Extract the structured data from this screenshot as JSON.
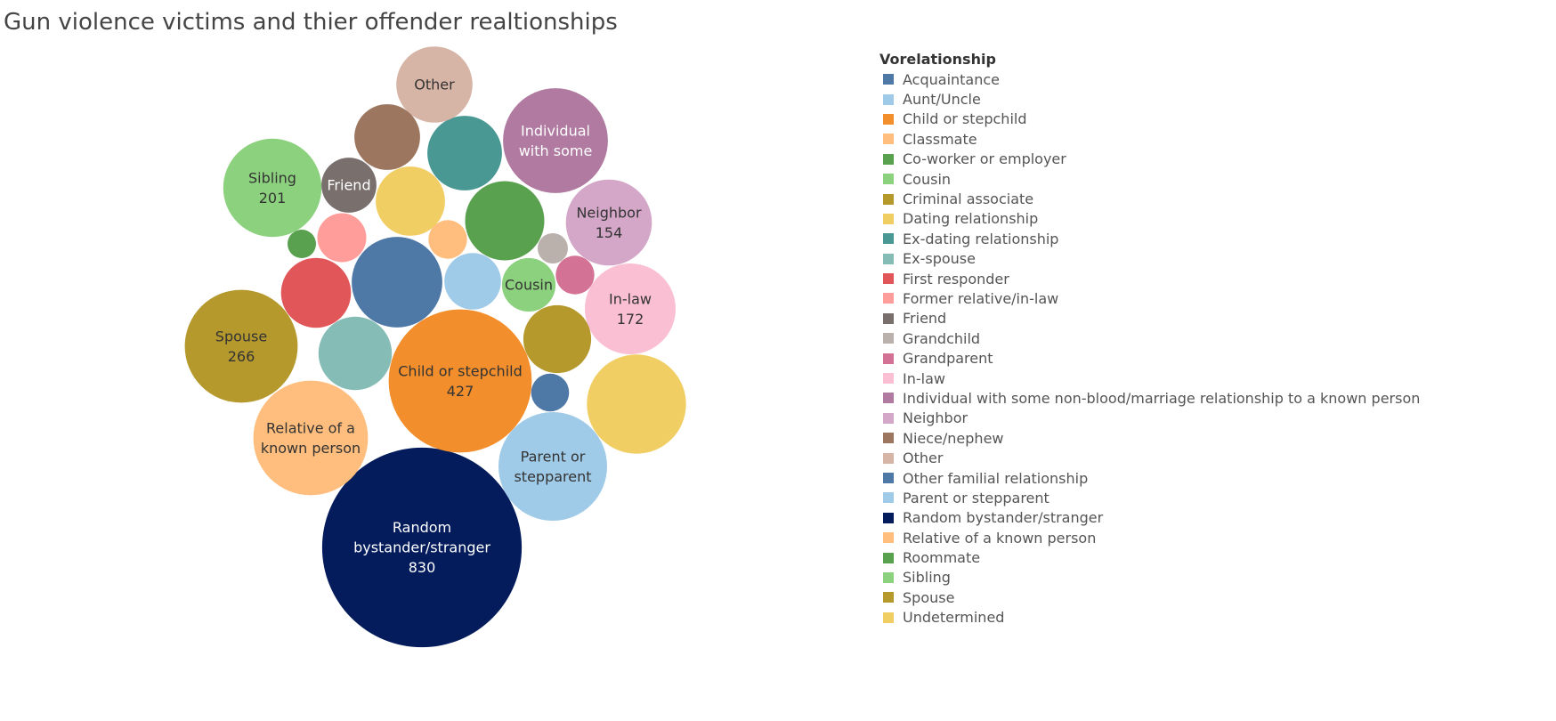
{
  "title": "Gun violence victims and thier offender realtionships",
  "chart_data": {
    "type": "bubble",
    "title": "Gun violence victims and thier offender realtionships",
    "legend_title": "Vorelationship",
    "legend_position": "right",
    "categories": [
      {
        "name": "Acquaintance",
        "color": "#4e79a7"
      },
      {
        "name": "Aunt/Uncle",
        "color": "#a0cbe8"
      },
      {
        "name": "Child or stepchild",
        "color": "#f28e2b"
      },
      {
        "name": "Classmate",
        "color": "#ffbe7d"
      },
      {
        "name": "Co-worker or employer",
        "color": "#59a14f"
      },
      {
        "name": "Cousin",
        "color": "#8cd17d"
      },
      {
        "name": "Criminal associate",
        "color": "#b6992d"
      },
      {
        "name": "Dating relationship",
        "color": "#f1ce63"
      },
      {
        "name": "Ex-dating relationship",
        "color": "#499894"
      },
      {
        "name": "Ex-spouse",
        "color": "#86bcb6"
      },
      {
        "name": "First responder",
        "color": "#e15759"
      },
      {
        "name": "Former relative/in-law",
        "color": "#ff9d9a"
      },
      {
        "name": "Friend",
        "color": "#79706e"
      },
      {
        "name": "Grandchild",
        "color": "#bab0ac"
      },
      {
        "name": "Grandparent",
        "color": "#d37295"
      },
      {
        "name": "In-law",
        "color": "#fabfd2"
      },
      {
        "name": "Individual with some non-blood/marriage relationship to a known person",
        "color": "#b07aa1"
      },
      {
        "name": "Neighbor",
        "color": "#d4a6c8"
      },
      {
        "name": "Niece/nephew",
        "color": "#9d7660"
      },
      {
        "name": "Other",
        "color": "#d7b5a6"
      },
      {
        "name": "Other familial relationship",
        "color": "#4e79a7"
      },
      {
        "name": "Parent or stepparent",
        "color": "#a0cbe8"
      },
      {
        "name": "Random bystander/stranger",
        "color": "#041c5c"
      },
      {
        "name": "Relative of a known person",
        "color": "#ffbe7d"
      },
      {
        "name": "Roommate",
        "color": "#59a14f"
      },
      {
        "name": "Sibling",
        "color": "#8cd17d"
      },
      {
        "name": "Spouse",
        "color": "#b6992d"
      },
      {
        "name": "Undetermined",
        "color": "#f1ce63"
      }
    ],
    "bubbles": [
      {
        "category": "Random bystander/stranger",
        "value": 830,
        "label": [
          "Random",
          "bystander/stranger",
          "830"
        ],
        "label_color": "#ffffff"
      },
      {
        "category": "Child or stepchild",
        "value": 427,
        "label": [
          "Child or stepchild",
          "427"
        ],
        "label_color": "#333333"
      },
      {
        "category": "Spouse",
        "value": 266,
        "label": [
          "Spouse",
          "266"
        ],
        "label_color": "#333333"
      },
      {
        "category": "Sibling",
        "value": 201,
        "label": [
          "Sibling",
          "201"
        ],
        "label_color": "#333333"
      },
      {
        "category": "In-law",
        "value": 172,
        "label": [
          "In-law",
          "172"
        ],
        "label_color": "#333333"
      },
      {
        "category": "Neighbor",
        "value": 154,
        "label": [
          "Neighbor",
          "154"
        ],
        "label_color": "#333333"
      },
      {
        "category": "Relative of a known person",
        "value": 274,
        "label": [
          "Relative of a",
          "known person"
        ],
        "label_color": "#333333"
      },
      {
        "category": "Parent or stepparent",
        "value": 246,
        "label": [
          "Parent or",
          "stepparent"
        ],
        "label_color": "#333333"
      },
      {
        "category": "Individual with some non-blood/marriage relationship to a known person",
        "value": 229,
        "label": [
          "Individual",
          "with some"
        ],
        "label_color": "#ffffff"
      },
      {
        "category": "Undetermined",
        "value": 205,
        "label": [],
        "label_color": "#333333"
      },
      {
        "category": "Acquaintance",
        "value": 171,
        "label": [],
        "label_color": "#ffffff"
      },
      {
        "category": "Criminal associate",
        "value": 96,
        "label": [],
        "label_color": "#333333"
      },
      {
        "category": "Co-worker or employer",
        "value": 131,
        "label": [],
        "label_color": "#333333"
      },
      {
        "category": "Ex-dating relationship",
        "value": 116,
        "label": [],
        "label_color": "#333333"
      },
      {
        "category": "Ex-spouse",
        "value": 112,
        "label": [],
        "label_color": "#333333"
      },
      {
        "category": "First responder",
        "value": 102,
        "label": [],
        "label_color": "#333333"
      },
      {
        "category": "Other",
        "value": 121,
        "label": [
          "Other"
        ],
        "label_color": "#333333"
      },
      {
        "category": "Dating relationship",
        "value": 100,
        "label": [],
        "label_color": "#333333"
      },
      {
        "category": "Niece/nephew",
        "value": 90,
        "label": [],
        "label_color": "#333333"
      },
      {
        "category": "Aunt/Uncle",
        "value": 67,
        "label": [],
        "label_color": "#333333"
      },
      {
        "category": "Cousin",
        "value": 60,
        "label": [
          "Cousin"
        ],
        "label_color": "#333333"
      },
      {
        "category": "Friend",
        "value": 63,
        "label": [
          "Friend"
        ],
        "label_color": "#ffffff"
      },
      {
        "category": "Former relative/in-law",
        "value": 50,
        "label": [],
        "label_color": "#333333"
      },
      {
        "category": "Classmate",
        "value": 31,
        "label": [],
        "label_color": "#333333"
      },
      {
        "category": "Other familial relationship",
        "value": 30,
        "label": [],
        "label_color": "#333333"
      },
      {
        "category": "Grandparent",
        "value": 31,
        "label": [],
        "label_color": "#333333"
      },
      {
        "category": "Grandchild",
        "value": 19,
        "label": [],
        "label_color": "#333333"
      },
      {
        "category": "Roommate",
        "value": 17,
        "label": [],
        "label_color": "#333333"
      }
    ]
  }
}
